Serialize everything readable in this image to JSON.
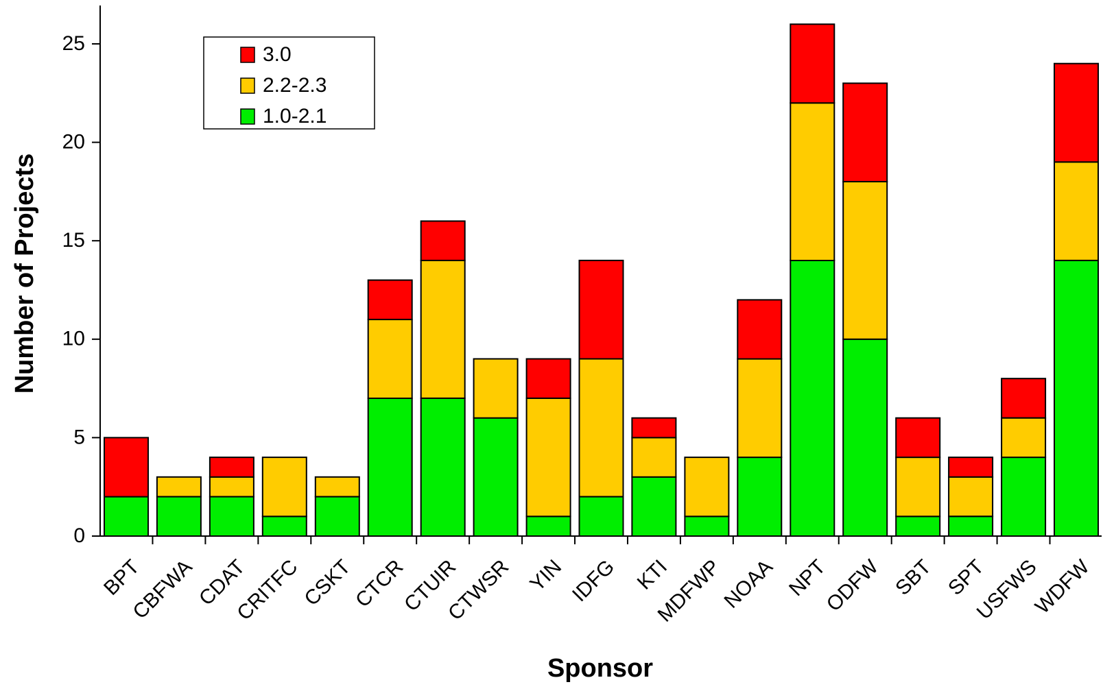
{
  "chart_data": {
    "type": "bar",
    "stacked": true,
    "title": "",
    "xlabel": "Sponsor",
    "ylabel": "Number of Projects",
    "ylim": [
      0,
      27
    ],
    "yticks": [
      0,
      5,
      10,
      15,
      20,
      25
    ],
    "grid": false,
    "legend_position": "top-left",
    "categories": [
      "BPT",
      "CBFWA",
      "CDAT",
      "CRITFC",
      "CSKT",
      "CTCR",
      "CTUIR",
      "CTWSR",
      "YIN",
      "IDFG",
      "KTI",
      "MDFWP",
      "NOAA",
      "NPT",
      "ODFW",
      "SBT",
      "SPT",
      "USFWS",
      "WDFW"
    ],
    "series": [
      {
        "name": "1.0-2.1",
        "color": "#00ee00",
        "values": [
          2,
          2,
          2,
          1,
          2,
          7,
          7,
          6,
          1,
          2,
          3,
          1,
          4,
          14,
          10,
          1,
          1,
          4,
          14
        ]
      },
      {
        "name": "2.2-2.3",
        "color": "#ffcc00",
        "values": [
          0,
          1,
          1,
          3,
          1,
          4,
          7,
          3,
          6,
          7,
          2,
          3,
          5,
          8,
          8,
          3,
          2,
          2,
          5
        ]
      },
      {
        "name": "3.0",
        "color": "#ff0000",
        "values": [
          3,
          0,
          1,
          0,
          0,
          2,
          2,
          0,
          2,
          5,
          1,
          0,
          3,
          4,
          5,
          2,
          1,
          2,
          5
        ]
      }
    ],
    "legend_order": [
      "3.0",
      "2.2-2.3",
      "1.0-2.1"
    ]
  }
}
